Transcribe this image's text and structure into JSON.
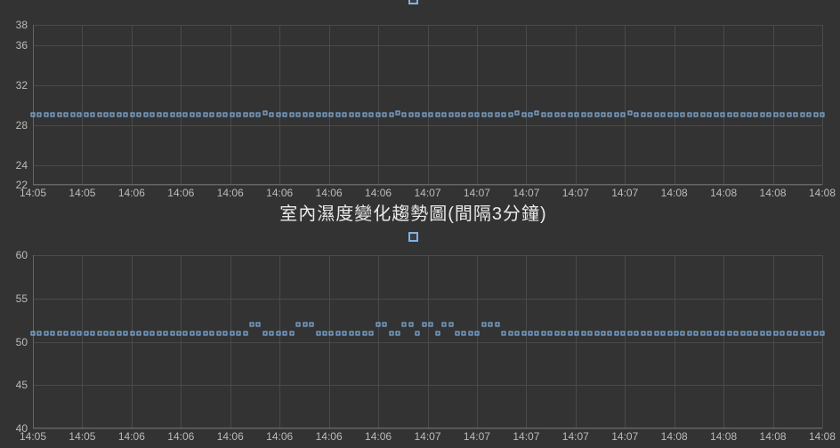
{
  "background_color": "#333333",
  "text_color": "#bbbbbb",
  "grid_color": "#4a4a4a",
  "axis_color": "#666666",
  "marker_color": "#88bdf0",
  "marker_border_width": 1.5,
  "marker_size": 5,
  "chart1": {
    "type": "line",
    "legend_present": true,
    "y_ticks": [
      22,
      24,
      28,
      32,
      36,
      38
    ],
    "y_min": 22,
    "y_max": 38,
    "x_labels": [
      "14:05",
      "14:05",
      "14:06",
      "14:06",
      "14:06",
      "14:06",
      "14:06",
      "14:06",
      "14:07",
      "14:07",
      "14:07",
      "14:07",
      "14:07",
      "14:08",
      "14:08",
      "14:08",
      "14:08"
    ],
    "x_count": 17,
    "series": {
      "value": 29,
      "anomalies": [
        35,
        55,
        73,
        76,
        90
      ],
      "anomaly_value": 29.2,
      "point_count": 120
    },
    "tick_fontsize": 12
  },
  "chart2": {
    "type": "line",
    "title": "室內濕度變化趨勢圖(間隔3分鐘)",
    "title_fontsize": 20,
    "title_color": "#e8e8e8",
    "legend_present": true,
    "y_ticks": [
      40,
      45,
      50,
      55,
      60
    ],
    "y_min": 40,
    "y_max": 60,
    "x_labels": [
      "14:05",
      "14:05",
      "14:06",
      "14:06",
      "14:06",
      "14:06",
      "14:06",
      "14:06",
      "14:07",
      "14:07",
      "14:07",
      "14:07",
      "14:07",
      "14:08",
      "14:08",
      "14:08",
      "14:08"
    ],
    "x_count": 17,
    "series": {
      "value": 51,
      "anomalies": [
        33,
        34,
        40,
        41,
        42,
        52,
        53,
        56,
        57,
        59,
        60,
        62,
        63,
        68,
        69,
        70
      ],
      "anomaly_value": 52,
      "point_count": 120
    },
    "tick_fontsize": 12
  }
}
